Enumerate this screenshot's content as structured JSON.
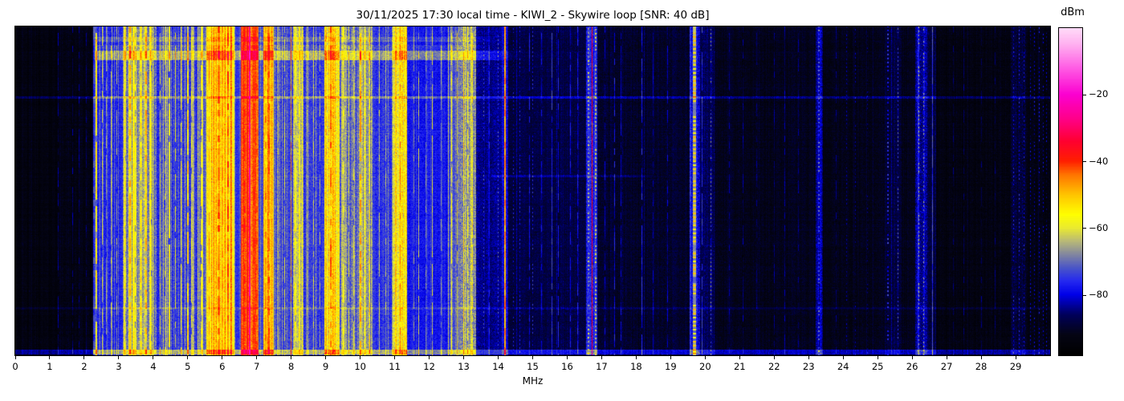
{
  "chart_data": {
    "type": "heatmap",
    "subtype": "radio-spectrum-waterfall",
    "title": "30/11/2025 17:30 local time - KIWI_2 - Skywire loop [SNR: 40 dB]",
    "x_axis": {
      "label": "MHz",
      "min": 0,
      "max": 30,
      "ticks": [
        0,
        1,
        2,
        3,
        4,
        5,
        6,
        7,
        8,
        9,
        10,
        11,
        12,
        13,
        14,
        15,
        16,
        17,
        18,
        19,
        20,
        21,
        22,
        23,
        24,
        25,
        26,
        27,
        28,
        29
      ]
    },
    "y_axis": {
      "label": "",
      "note": "time axis, no tick labels shown"
    },
    "colorbar": {
      "label": "dBm",
      "vmin": -98,
      "vmax": 0,
      "ticks": [
        {
          "value": -20,
          "label": "−20"
        },
        {
          "value": -40,
          "label": "−40"
        },
        {
          "value": -60,
          "label": "−60"
        },
        {
          "value": -80,
          "label": "−80"
        }
      ]
    },
    "colormap_stops": [
      [
        -98,
        "#000000"
      ],
      [
        -92,
        "#040414"
      ],
      [
        -86,
        "#00005a"
      ],
      [
        -80,
        "#0000e8"
      ],
      [
        -76,
        "#2428f0"
      ],
      [
        -72,
        "#4a55c8"
      ],
      [
        -68,
        "#8286a0"
      ],
      [
        -64,
        "#b8b878"
      ],
      [
        -60,
        "#eaea30"
      ],
      [
        -56,
        "#ffff00"
      ],
      [
        -50,
        "#ffc400"
      ],
      [
        -44,
        "#ff7400"
      ],
      [
        -40,
        "#ff2000"
      ],
      [
        -34,
        "#ff0030"
      ],
      [
        -27,
        "#ff008c"
      ],
      [
        -20,
        "#fb00d0"
      ],
      [
        -12,
        "#ff5ce4"
      ],
      [
        -5,
        "#ffaff0"
      ],
      [
        0,
        "#ffdcf8"
      ]
    ],
    "render_seed": 42,
    "bands": [
      [
        0.0,
        1.2,
        -93.5,
        2.2,
        0.04,
        3
      ],
      [
        1.2,
        2.25,
        -92.5,
        2.8,
        0.07,
        4
      ],
      [
        2.25,
        2.44,
        -78,
        5,
        0.4,
        8
      ],
      [
        2.44,
        3.12,
        -77,
        4,
        0.3,
        10
      ],
      [
        3.12,
        4.1,
        -69,
        6,
        0.55,
        14
      ],
      [
        4.1,
        5.3,
        -75,
        5,
        0.35,
        13
      ],
      [
        5.3,
        5.55,
        -71,
        5,
        0.45,
        12
      ],
      [
        5.55,
        6.35,
        -57,
        6,
        0.75,
        14
      ],
      [
        6.35,
        6.55,
        -75,
        4,
        0.3,
        8
      ],
      [
        6.55,
        7.05,
        -46,
        5,
        0.8,
        8
      ],
      [
        7.05,
        7.2,
        -73,
        4,
        0.3,
        8
      ],
      [
        7.2,
        7.5,
        -54,
        6,
        0.7,
        10
      ],
      [
        7.5,
        8.05,
        -74,
        5,
        0.35,
        10
      ],
      [
        8.05,
        8.35,
        -64,
        6,
        0.5,
        10
      ],
      [
        8.35,
        8.95,
        -75,
        5,
        0.3,
        9
      ],
      [
        8.95,
        9.4,
        -59,
        7,
        0.65,
        12
      ],
      [
        9.4,
        9.95,
        -71,
        6,
        0.4,
        10
      ],
      [
        9.95,
        10.35,
        -69,
        6,
        0.45,
        10
      ],
      [
        10.35,
        10.95,
        -75,
        5,
        0.3,
        9
      ],
      [
        10.95,
        11.35,
        -61,
        7,
        0.6,
        12
      ],
      [
        11.35,
        12.55,
        -78,
        4,
        0.25,
        8
      ],
      [
        12.55,
        12.9,
        -74,
        5,
        0.35,
        10
      ],
      [
        12.9,
        13.35,
        -68,
        7,
        0.55,
        12
      ],
      [
        13.35,
        14.1,
        -84,
        4,
        0.15,
        6
      ],
      [
        14.1,
        14.28,
        -80,
        5,
        0.3,
        8
      ],
      [
        14.28,
        16.55,
        -88,
        3.5,
        0.1,
        5
      ],
      [
        16.55,
        16.88,
        -78,
        6,
        0.4,
        8
      ],
      [
        16.88,
        19.55,
        -90,
        3.5,
        0.08,
        4
      ],
      [
        19.55,
        19.85,
        -80,
        6,
        0.3,
        6
      ],
      [
        19.85,
        20.3,
        -87,
        4,
        0.15,
        5
      ],
      [
        20.3,
        23.2,
        -91.5,
        3,
        0.06,
        4
      ],
      [
        23.2,
        23.42,
        -85,
        5,
        0.2,
        6
      ],
      [
        23.42,
        25.2,
        -92,
        3,
        0.06,
        4
      ],
      [
        25.2,
        25.7,
        -89,
        4,
        0.12,
        5
      ],
      [
        25.7,
        26.1,
        -92,
        3,
        0.06,
        4
      ],
      [
        26.1,
        26.45,
        -84,
        6,
        0.3,
        8
      ],
      [
        26.45,
        26.7,
        -88,
        4,
        0.1,
        4
      ],
      [
        26.7,
        28.85,
        -93,
        2.8,
        0.05,
        3
      ],
      [
        28.85,
        29.3,
        -89,
        5,
        0.15,
        5
      ],
      [
        29.3,
        30.01,
        -93,
        3,
        0.08,
        4
      ]
    ],
    "stripes": [
      [
        1.25,
        0.025,
        -86,
        0
      ],
      [
        1.67,
        0.022,
        -86,
        0
      ],
      [
        1.86,
        0.022,
        -87,
        0
      ],
      [
        2.05,
        0.025,
        -88,
        0
      ],
      [
        2.28,
        0.03,
        -75,
        0
      ],
      [
        2.35,
        0.035,
        -56,
        0
      ],
      [
        2.46,
        0.03,
        -72,
        0
      ],
      [
        2.52,
        0.025,
        -63,
        0
      ],
      [
        2.65,
        0.02,
        -68,
        0
      ],
      [
        2.78,
        0.03,
        -64,
        0
      ],
      [
        2.95,
        0.02,
        -66,
        0
      ],
      [
        3.2,
        0.04,
        -56,
        0
      ],
      [
        3.33,
        0.03,
        -49,
        0
      ],
      [
        3.48,
        0.03,
        -59,
        0
      ],
      [
        3.64,
        0.03,
        -53,
        0
      ],
      [
        3.8,
        0.04,
        -50,
        0
      ],
      [
        3.95,
        0.03,
        -57,
        0
      ],
      [
        4.2,
        0.03,
        -61,
        0
      ],
      [
        4.35,
        0.02,
        -66,
        0
      ],
      [
        4.47,
        0.03,
        -57,
        0
      ],
      [
        4.65,
        0.025,
        -59,
        0
      ],
      [
        4.8,
        0.03,
        -56,
        0
      ],
      [
        5.0,
        0.04,
        -53,
        0
      ],
      [
        5.1,
        0.02,
        -61,
        0
      ],
      [
        5.4,
        0.03,
        -58,
        0
      ],
      [
        5.62,
        0.04,
        -47,
        0
      ],
      [
        5.75,
        0.03,
        -51,
        0
      ],
      [
        5.9,
        0.05,
        -45,
        0
      ],
      [
        6.0,
        0.04,
        -49,
        0
      ],
      [
        6.17,
        0.045,
        -43,
        0
      ],
      [
        6.28,
        0.03,
        -52,
        0
      ],
      [
        6.65,
        0.05,
        -41,
        0
      ],
      [
        6.8,
        0.05,
        -27,
        2
      ],
      [
        6.92,
        0.03,
        -44,
        0
      ],
      [
        7.0,
        0.04,
        -45,
        0
      ],
      [
        7.26,
        0.04,
        -47,
        0
      ],
      [
        7.35,
        0.05,
        -44,
        0
      ],
      [
        7.44,
        0.03,
        -51,
        0
      ],
      [
        7.62,
        0.02,
        -64,
        0
      ],
      [
        7.8,
        0.025,
        -62,
        0
      ],
      [
        8.0,
        0.022,
        -48,
        0
      ],
      [
        8.12,
        0.03,
        -58,
        0
      ],
      [
        8.22,
        0.03,
        -56,
        0
      ],
      [
        8.47,
        0.02,
        -65,
        0
      ],
      [
        8.65,
        0.02,
        -63,
        0
      ],
      [
        8.83,
        0.02,
        -66,
        0
      ],
      [
        9.02,
        0.03,
        -51,
        0
      ],
      [
        9.15,
        0.045,
        -45,
        0
      ],
      [
        9.28,
        0.03,
        -54,
        0
      ],
      [
        9.52,
        0.025,
        -60,
        0
      ],
      [
        9.68,
        0.025,
        -59,
        0
      ],
      [
        9.82,
        0.02,
        -62,
        0
      ],
      [
        10.0,
        0.04,
        -49,
        0
      ],
      [
        10.12,
        0.02,
        -60,
        0
      ],
      [
        10.28,
        0.03,
        -52,
        0
      ],
      [
        10.55,
        0.02,
        -64,
        0
      ],
      [
        10.75,
        0.02,
        -66,
        0
      ],
      [
        11.02,
        0.04,
        -51,
        0
      ],
      [
        11.16,
        0.04,
        -45,
        0
      ],
      [
        11.3,
        0.03,
        -55,
        0
      ],
      [
        11.55,
        0.02,
        -68,
        0
      ],
      [
        11.7,
        0.022,
        -64,
        0
      ],
      [
        11.9,
        0.02,
        -70,
        0
      ],
      [
        12.1,
        0.022,
        -61,
        0
      ],
      [
        12.35,
        0.02,
        -69,
        0
      ],
      [
        12.65,
        0.03,
        -59,
        0
      ],
      [
        12.82,
        0.03,
        -56,
        0
      ],
      [
        13.0,
        0.04,
        -53,
        0
      ],
      [
        13.12,
        0.03,
        -57,
        0
      ],
      [
        13.25,
        0.03,
        -55,
        0
      ],
      [
        13.57,
        0.022,
        -74,
        1
      ],
      [
        13.75,
        0.02,
        -78,
        0
      ],
      [
        14.0,
        0.022,
        -73,
        1
      ],
      [
        14.2,
        0.038,
        -46,
        2
      ],
      [
        14.45,
        0.02,
        -80,
        1
      ],
      [
        14.62,
        0.02,
        -79,
        1
      ],
      [
        14.9,
        0.02,
        -80,
        0
      ],
      [
        15.0,
        0.022,
        -77,
        1
      ],
      [
        15.25,
        0.02,
        -81,
        0
      ],
      [
        15.55,
        0.022,
        -76,
        0
      ],
      [
        15.75,
        0.02,
        -79,
        0
      ],
      [
        15.92,
        0.02,
        -77,
        0
      ],
      [
        16.1,
        0.02,
        -80,
        0
      ],
      [
        16.3,
        0.02,
        -79,
        0
      ],
      [
        16.62,
        0.03,
        -65,
        1
      ],
      [
        16.72,
        0.038,
        -38,
        2
      ],
      [
        16.83,
        0.03,
        -63,
        1
      ],
      [
        17.1,
        0.02,
        -83,
        0
      ],
      [
        17.37,
        0.022,
        -79,
        0
      ],
      [
        17.55,
        0.02,
        -82,
        0
      ],
      [
        18.16,
        0.022,
        -78,
        0
      ],
      [
        18.5,
        0.02,
        -84,
        0
      ],
      [
        18.9,
        0.02,
        -83,
        0
      ],
      [
        19.2,
        0.02,
        -84,
        0
      ],
      [
        19.68,
        0.09,
        -53,
        1
      ],
      [
        19.9,
        0.022,
        -76,
        0
      ],
      [
        20.16,
        0.028,
        -69,
        1
      ],
      [
        20.7,
        0.02,
        -86,
        0
      ],
      [
        21.1,
        0.02,
        -86,
        0
      ],
      [
        21.5,
        0.02,
        -87,
        0
      ],
      [
        22.0,
        0.02,
        -87,
        0
      ],
      [
        22.3,
        0.02,
        -86,
        0
      ],
      [
        22.7,
        0.02,
        -87,
        0
      ],
      [
        23.3,
        0.03,
        -72,
        1
      ],
      [
        23.8,
        0.02,
        -87,
        0
      ],
      [
        24.1,
        0.022,
        -84,
        1
      ],
      [
        24.35,
        0.022,
        -85,
        1
      ],
      [
        24.7,
        0.02,
        -87,
        1
      ],
      [
        25.3,
        0.026,
        -77,
        1
      ],
      [
        25.6,
        0.022,
        -73,
        1
      ],
      [
        26.2,
        0.032,
        -63,
        1
      ],
      [
        26.33,
        0.03,
        -67,
        1
      ],
      [
        26.6,
        0.026,
        -74,
        2
      ],
      [
        27.2,
        0.02,
        -88,
        0
      ],
      [
        27.5,
        0.02,
        -87,
        0
      ],
      [
        28.0,
        0.02,
        -88,
        0
      ],
      [
        28.4,
        0.02,
        -88,
        0
      ],
      [
        28.95,
        0.026,
        -79,
        1
      ],
      [
        29.1,
        0.026,
        -77,
        1
      ],
      [
        29.25,
        0.022,
        -80,
        1
      ],
      [
        29.42,
        0.02,
        -82,
        1
      ],
      [
        29.55,
        0.022,
        -81,
        1
      ],
      [
        29.68,
        0.02,
        -80,
        1
      ],
      [
        29.8,
        0.02,
        -82,
        1
      ],
      [
        29.9,
        0.02,
        -83,
        1
      ]
    ],
    "h_bands": [
      [
        13,
        18,
        4,
        2.3,
        13.1,
        14.0
      ],
      [
        23,
        28,
        3,
        2.3,
        13.1,
        14.0
      ],
      [
        30,
        41,
        9,
        2.3,
        13.1,
        14.8
      ],
      [
        87,
        89,
        7,
        0,
        30,
        30
      ],
      [
        185,
        187,
        4,
        13.8,
        18.0,
        18.6
      ],
      [
        350,
        352,
        3,
        0,
        30,
        30
      ],
      [
        403,
        408,
        10,
        0,
        30,
        30
      ]
    ]
  }
}
